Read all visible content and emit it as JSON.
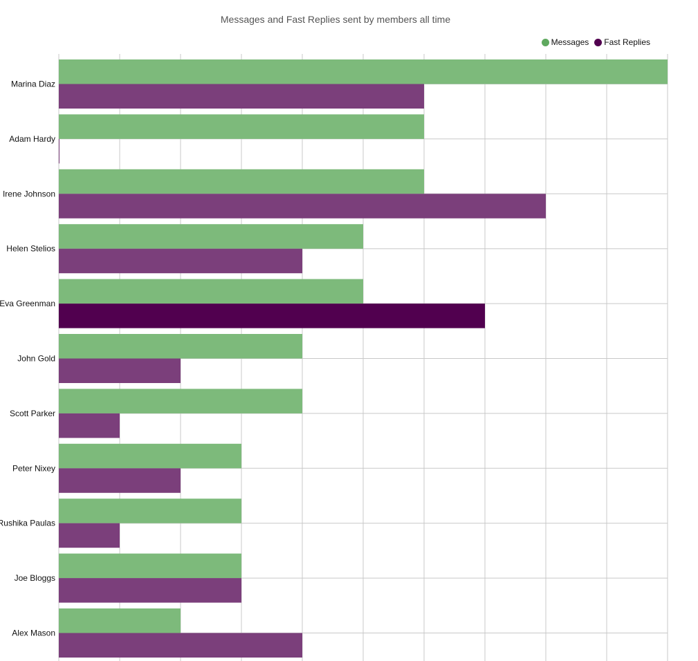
{
  "chart_data": {
    "type": "bar",
    "orientation": "horizontal",
    "title": "Messages and Fast Replies sent by members all time",
    "categories": [
      "Marina Diaz",
      "Adam Hardy",
      "Irene Johnson",
      "Helen Stelios",
      "Eva Greenman",
      "John Gold",
      "Scott Parker",
      "Peter Nixey",
      "Rushika Paulas",
      "Joe Bloggs",
      "Alex Mason"
    ],
    "series": [
      {
        "name": "Messages",
        "color": "#7dba7b",
        "values": [
          10,
          6,
          6,
          5,
          5,
          4,
          4,
          3,
          3,
          3,
          2
        ]
      },
      {
        "name": "Fast Replies",
        "color": "#7b3f7b",
        "values": [
          6,
          0,
          8,
          4,
          7,
          2,
          1,
          2,
          1,
          3,
          4
        ]
      }
    ],
    "highlight": {
      "category_index": 4,
      "series_index": 1,
      "color": "#51004f"
    },
    "legend_colors": {
      "Messages": "#5fa95f",
      "Fast Replies": "#51004f"
    },
    "xlim": [
      0,
      10
    ],
    "grid": true,
    "legend_position": "top-right"
  }
}
